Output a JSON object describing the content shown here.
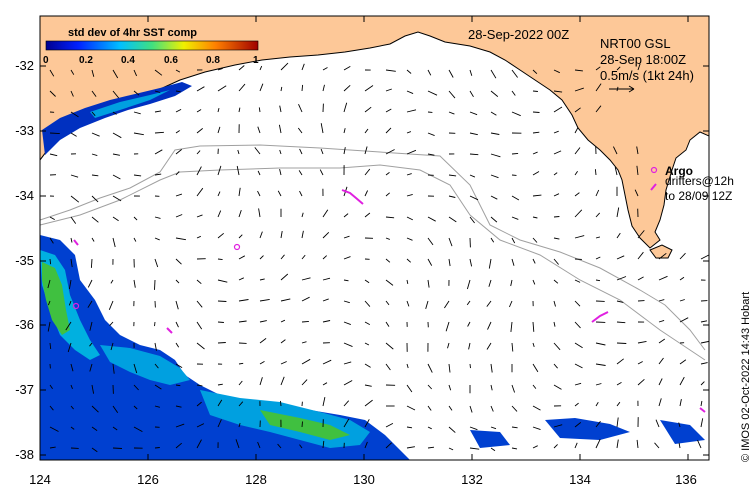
{
  "title": {
    "date": "28-Sep-2022 00Z",
    "product": "NRT00 GSL",
    "product_time": "28-Sep 18:00Z",
    "scale": "0.5m/s (1kt 24h)"
  },
  "colorbar": {
    "title": "std dev of 4hr SST comp",
    "ticks": [
      "0",
      "0.2",
      "0.4",
      "0.6",
      "0.8",
      "1"
    ]
  },
  "axes": {
    "y_ticks": [
      "-32",
      "-33",
      "-34",
      "-35",
      "-36",
      "-37",
      "-38"
    ],
    "x_ticks": [
      "124",
      "126",
      "128",
      "130",
      "132",
      "134",
      "136"
    ]
  },
  "legend": {
    "argo": "Argo",
    "drifters_line1": "drifters@12h",
    "drifters_line2": "to 28/09 12Z"
  },
  "copyright": "© IMOS 02-Oct-2022 14:43 Hobart",
  "colors": {
    "land": "#fdc898",
    "ocean": "#ffffff",
    "argo": "#e020e0",
    "sst_low": "#0030c0",
    "sst_mid": "#00b0e0",
    "sst_high": "#40c040"
  }
}
